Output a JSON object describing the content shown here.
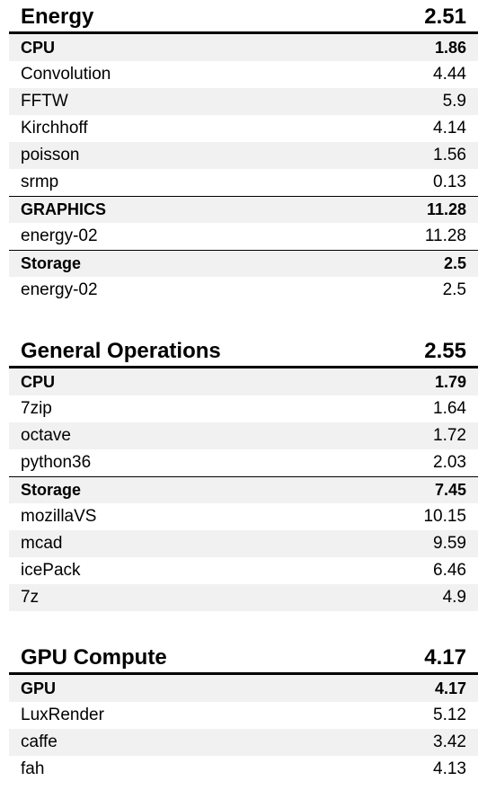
{
  "sections": [
    {
      "title": "Energy",
      "score": "2.51",
      "rows": [
        {
          "kind": "group",
          "label": "CPU",
          "value": "1.86"
        },
        {
          "kind": "item",
          "label": "Convolution",
          "value": "4.44"
        },
        {
          "kind": "item",
          "label": "FFTW",
          "value": "5.9"
        },
        {
          "kind": "item",
          "label": "Kirchhoff",
          "value": "4.14"
        },
        {
          "kind": "item",
          "label": "poisson",
          "value": "1.56"
        },
        {
          "kind": "item",
          "label": "srmp",
          "value": "0.13"
        },
        {
          "kind": "group",
          "label": "GRAPHICS",
          "value": "11.28"
        },
        {
          "kind": "item",
          "label": "energy-02",
          "value": "11.28"
        },
        {
          "kind": "group",
          "label": "Storage",
          "value": "2.5"
        },
        {
          "kind": "item",
          "label": "energy-02",
          "value": "2.5"
        }
      ]
    },
    {
      "title": "General Operations",
      "score": "2.55",
      "rows": [
        {
          "kind": "group",
          "label": "CPU",
          "value": "1.79"
        },
        {
          "kind": "item",
          "label": "7zip",
          "value": "1.64"
        },
        {
          "kind": "item",
          "label": "octave",
          "value": "1.72"
        },
        {
          "kind": "item",
          "label": "python36",
          "value": "2.03"
        },
        {
          "kind": "group",
          "label": "Storage",
          "value": "7.45"
        },
        {
          "kind": "item",
          "label": "mozillaVS",
          "value": "10.15"
        },
        {
          "kind": "item",
          "label": "mcad",
          "value": "9.59"
        },
        {
          "kind": "item",
          "label": "icePack",
          "value": "6.46"
        },
        {
          "kind": "item",
          "label": "7z",
          "value": "4.9"
        }
      ]
    },
    {
      "title": "GPU Compute",
      "score": "4.17",
      "rows": [
        {
          "kind": "group",
          "label": "GPU",
          "value": "4.17"
        },
        {
          "kind": "item",
          "label": "LuxRender",
          "value": "5.12"
        },
        {
          "kind": "item",
          "label": "caffe",
          "value": "3.42"
        },
        {
          "kind": "item",
          "label": "fah",
          "value": "4.13"
        }
      ]
    }
  ]
}
